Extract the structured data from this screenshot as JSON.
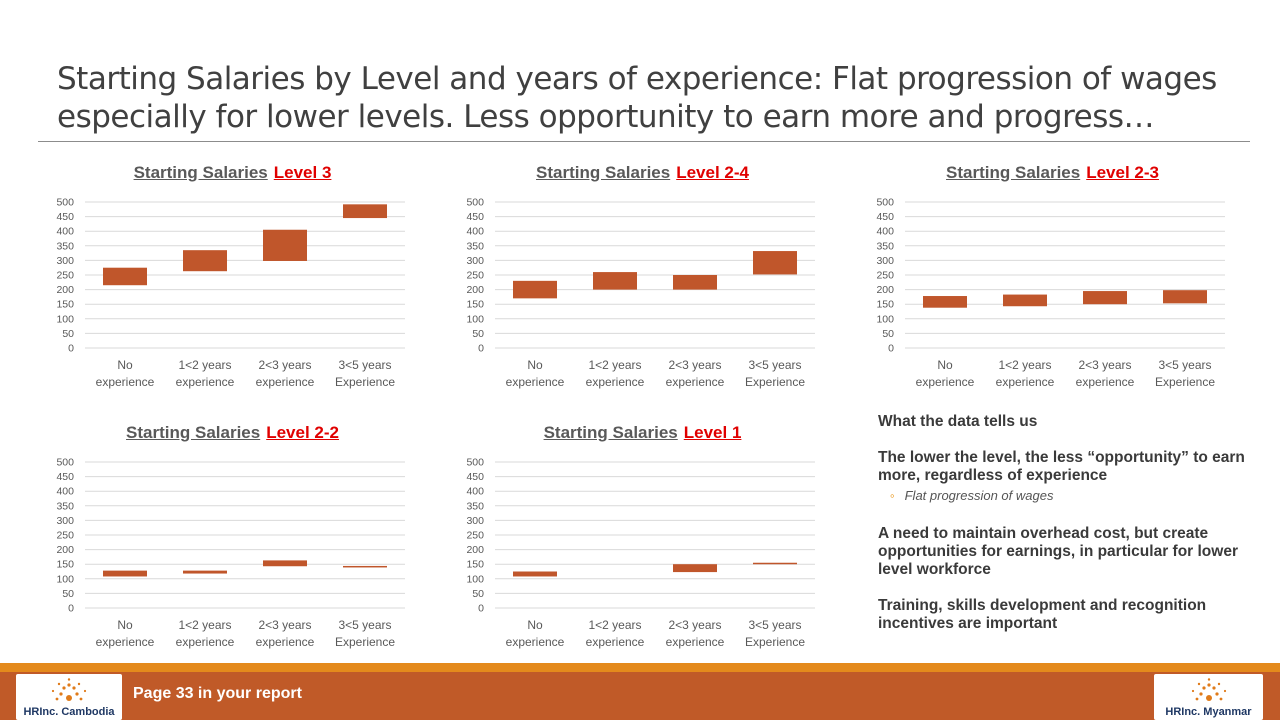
{
  "slide": {
    "title_line1": "Starting Salaries by Level and years of experience:  Flat progression of wages",
    "title_line2": "especially for lower levels.  Less opportunity to earn more and progress…"
  },
  "colors": {
    "bar": "#c0562b",
    "level_text": "#e00000",
    "footer": "#c05a28",
    "footer_strip": "#e48a1c"
  },
  "chart_data": [
    {
      "type": "bar",
      "title": "Starting Salaries",
      "title_level": "Level 3",
      "categories": [
        [
          "No",
          "experience"
        ],
        [
          "1<2 years",
          "experience"
        ],
        [
          "2<3 years",
          "experience"
        ],
        [
          "3<5 years",
          "Experience"
        ]
      ],
      "ranges": [
        [
          215,
          275
        ],
        [
          263,
          335
        ],
        [
          298,
          405
        ],
        [
          445,
          492
        ]
      ],
      "yticks": [
        0,
        50,
        100,
        150,
        200,
        250,
        300,
        350,
        400,
        450,
        500
      ],
      "ylim": [
        0,
        500
      ],
      "grid": true
    },
    {
      "type": "bar",
      "title": "Starting Salaries",
      "title_level": "Level 2-4",
      "categories": [
        [
          "No",
          "experience"
        ],
        [
          "1<2 years",
          "experience"
        ],
        [
          "2<3 years",
          "experience"
        ],
        [
          "3<5 years",
          "Experience"
        ]
      ],
      "ranges": [
        [
          170,
          230
        ],
        [
          200,
          260
        ],
        [
          200,
          250
        ],
        [
          252,
          332
        ]
      ],
      "yticks": [
        0,
        50,
        100,
        150,
        200,
        250,
        300,
        350,
        400,
        450,
        500
      ],
      "ylim": [
        0,
        500
      ],
      "grid": true
    },
    {
      "type": "bar",
      "title": "Starting Salaries",
      "title_level": "Level 2-3",
      "categories": [
        [
          "No",
          "experience"
        ],
        [
          "1<2 years",
          "experience"
        ],
        [
          "2<3 years",
          "experience"
        ],
        [
          "3<5 years",
          "Experience"
        ]
      ],
      "ranges": [
        [
          138,
          178
        ],
        [
          143,
          183
        ],
        [
          150,
          195
        ],
        [
          153,
          198
        ]
      ],
      "yticks": [
        0,
        50,
        100,
        150,
        200,
        250,
        300,
        350,
        400,
        450,
        500
      ],
      "ylim": [
        0,
        500
      ],
      "grid": true
    },
    {
      "type": "bar",
      "title": "Starting Salaries",
      "title_level": "Level 2-2",
      "categories": [
        [
          "No",
          "experience"
        ],
        [
          "1<2 years",
          "experience"
        ],
        [
          "2<3 years",
          "experience"
        ],
        [
          "3<5 years",
          "Experience"
        ]
      ],
      "ranges": [
        [
          108,
          128
        ],
        [
          118,
          128
        ],
        [
          143,
          163
        ],
        [
          140,
          144
        ]
      ],
      "yticks": [
        0,
        50,
        100,
        150,
        200,
        250,
        300,
        350,
        400,
        450,
        500
      ],
      "ylim": [
        0,
        500
      ],
      "grid": true
    },
    {
      "type": "bar",
      "title": "Starting Salaries",
      "title_level": "Level 1",
      "categories": [
        [
          "No",
          "experience"
        ],
        [
          "1<2 years",
          "experience"
        ],
        [
          "2<3 years",
          "experience"
        ],
        [
          "3<5 years",
          "Experience"
        ]
      ],
      "ranges": [
        [
          108,
          125
        ],
        [
          null,
          null
        ],
        [
          123,
          150
        ],
        [
          150,
          155
        ]
      ],
      "yticks": [
        0,
        50,
        100,
        150,
        200,
        250,
        300,
        350,
        400,
        450,
        500
      ],
      "ylim": [
        0,
        500
      ],
      "grid": true
    }
  ],
  "notes": {
    "heading": "What the data tells us",
    "p1": "The lower the level, the less “opportunity” to earn more, regardless of experience",
    "bullet": "Flat progression of wages",
    "p2": "A need to maintain overhead cost, but create opportunities for earnings, in particular for lower level workforce",
    "p3": "Training, skills development and recognition incentives are important"
  },
  "footer": {
    "text": "Page 33 in your report",
    "logo_left_text": "HRInc. Cambodia",
    "logo_right_text": "HRInc. Myanmar"
  }
}
